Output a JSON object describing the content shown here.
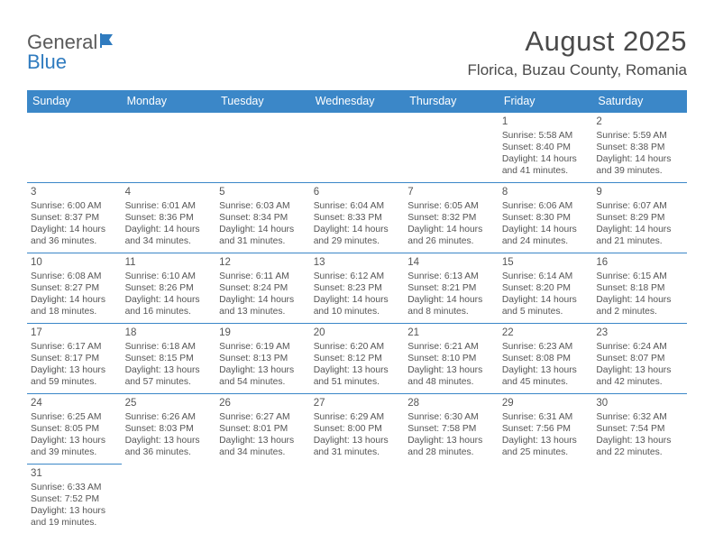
{
  "logo": {
    "part1": "General",
    "part2": "Blue"
  },
  "title": "August 2025",
  "location": "Florica, Buzau County, Romania",
  "colors": {
    "header_bg": "#3b87c8",
    "header_fg": "#ffffff",
    "border": "#3b87c8",
    "text": "#555555"
  },
  "dayHeaders": [
    "Sunday",
    "Monday",
    "Tuesday",
    "Wednesday",
    "Thursday",
    "Friday",
    "Saturday"
  ],
  "weeks": [
    [
      null,
      null,
      null,
      null,
      null,
      {
        "n": "1",
        "sunrise": "Sunrise: 5:58 AM",
        "sunset": "Sunset: 8:40 PM",
        "daylight": "Daylight: 14 hours and 41 minutes."
      },
      {
        "n": "2",
        "sunrise": "Sunrise: 5:59 AM",
        "sunset": "Sunset: 8:38 PM",
        "daylight": "Daylight: 14 hours and 39 minutes."
      }
    ],
    [
      {
        "n": "3",
        "sunrise": "Sunrise: 6:00 AM",
        "sunset": "Sunset: 8:37 PM",
        "daylight": "Daylight: 14 hours and 36 minutes."
      },
      {
        "n": "4",
        "sunrise": "Sunrise: 6:01 AM",
        "sunset": "Sunset: 8:36 PM",
        "daylight": "Daylight: 14 hours and 34 minutes."
      },
      {
        "n": "5",
        "sunrise": "Sunrise: 6:03 AM",
        "sunset": "Sunset: 8:34 PM",
        "daylight": "Daylight: 14 hours and 31 minutes."
      },
      {
        "n": "6",
        "sunrise": "Sunrise: 6:04 AM",
        "sunset": "Sunset: 8:33 PM",
        "daylight": "Daylight: 14 hours and 29 minutes."
      },
      {
        "n": "7",
        "sunrise": "Sunrise: 6:05 AM",
        "sunset": "Sunset: 8:32 PM",
        "daylight": "Daylight: 14 hours and 26 minutes."
      },
      {
        "n": "8",
        "sunrise": "Sunrise: 6:06 AM",
        "sunset": "Sunset: 8:30 PM",
        "daylight": "Daylight: 14 hours and 24 minutes."
      },
      {
        "n": "9",
        "sunrise": "Sunrise: 6:07 AM",
        "sunset": "Sunset: 8:29 PM",
        "daylight": "Daylight: 14 hours and 21 minutes."
      }
    ],
    [
      {
        "n": "10",
        "sunrise": "Sunrise: 6:08 AM",
        "sunset": "Sunset: 8:27 PM",
        "daylight": "Daylight: 14 hours and 18 minutes."
      },
      {
        "n": "11",
        "sunrise": "Sunrise: 6:10 AM",
        "sunset": "Sunset: 8:26 PM",
        "daylight": "Daylight: 14 hours and 16 minutes."
      },
      {
        "n": "12",
        "sunrise": "Sunrise: 6:11 AM",
        "sunset": "Sunset: 8:24 PM",
        "daylight": "Daylight: 14 hours and 13 minutes."
      },
      {
        "n": "13",
        "sunrise": "Sunrise: 6:12 AM",
        "sunset": "Sunset: 8:23 PM",
        "daylight": "Daylight: 14 hours and 10 minutes."
      },
      {
        "n": "14",
        "sunrise": "Sunrise: 6:13 AM",
        "sunset": "Sunset: 8:21 PM",
        "daylight": "Daylight: 14 hours and 8 minutes."
      },
      {
        "n": "15",
        "sunrise": "Sunrise: 6:14 AM",
        "sunset": "Sunset: 8:20 PM",
        "daylight": "Daylight: 14 hours and 5 minutes."
      },
      {
        "n": "16",
        "sunrise": "Sunrise: 6:15 AM",
        "sunset": "Sunset: 8:18 PM",
        "daylight": "Daylight: 14 hours and 2 minutes."
      }
    ],
    [
      {
        "n": "17",
        "sunrise": "Sunrise: 6:17 AM",
        "sunset": "Sunset: 8:17 PM",
        "daylight": "Daylight: 13 hours and 59 minutes."
      },
      {
        "n": "18",
        "sunrise": "Sunrise: 6:18 AM",
        "sunset": "Sunset: 8:15 PM",
        "daylight": "Daylight: 13 hours and 57 minutes."
      },
      {
        "n": "19",
        "sunrise": "Sunrise: 6:19 AM",
        "sunset": "Sunset: 8:13 PM",
        "daylight": "Daylight: 13 hours and 54 minutes."
      },
      {
        "n": "20",
        "sunrise": "Sunrise: 6:20 AM",
        "sunset": "Sunset: 8:12 PM",
        "daylight": "Daylight: 13 hours and 51 minutes."
      },
      {
        "n": "21",
        "sunrise": "Sunrise: 6:21 AM",
        "sunset": "Sunset: 8:10 PM",
        "daylight": "Daylight: 13 hours and 48 minutes."
      },
      {
        "n": "22",
        "sunrise": "Sunrise: 6:23 AM",
        "sunset": "Sunset: 8:08 PM",
        "daylight": "Daylight: 13 hours and 45 minutes."
      },
      {
        "n": "23",
        "sunrise": "Sunrise: 6:24 AM",
        "sunset": "Sunset: 8:07 PM",
        "daylight": "Daylight: 13 hours and 42 minutes."
      }
    ],
    [
      {
        "n": "24",
        "sunrise": "Sunrise: 6:25 AM",
        "sunset": "Sunset: 8:05 PM",
        "daylight": "Daylight: 13 hours and 39 minutes."
      },
      {
        "n": "25",
        "sunrise": "Sunrise: 6:26 AM",
        "sunset": "Sunset: 8:03 PM",
        "daylight": "Daylight: 13 hours and 36 minutes."
      },
      {
        "n": "26",
        "sunrise": "Sunrise: 6:27 AM",
        "sunset": "Sunset: 8:01 PM",
        "daylight": "Daylight: 13 hours and 34 minutes."
      },
      {
        "n": "27",
        "sunrise": "Sunrise: 6:29 AM",
        "sunset": "Sunset: 8:00 PM",
        "daylight": "Daylight: 13 hours and 31 minutes."
      },
      {
        "n": "28",
        "sunrise": "Sunrise: 6:30 AM",
        "sunset": "Sunset: 7:58 PM",
        "daylight": "Daylight: 13 hours and 28 minutes."
      },
      {
        "n": "29",
        "sunrise": "Sunrise: 6:31 AM",
        "sunset": "Sunset: 7:56 PM",
        "daylight": "Daylight: 13 hours and 25 minutes."
      },
      {
        "n": "30",
        "sunrise": "Sunrise: 6:32 AM",
        "sunset": "Sunset: 7:54 PM",
        "daylight": "Daylight: 13 hours and 22 minutes."
      }
    ],
    [
      {
        "n": "31",
        "sunrise": "Sunrise: 6:33 AM",
        "sunset": "Sunset: 7:52 PM",
        "daylight": "Daylight: 13 hours and 19 minutes."
      },
      null,
      null,
      null,
      null,
      null,
      null
    ]
  ]
}
